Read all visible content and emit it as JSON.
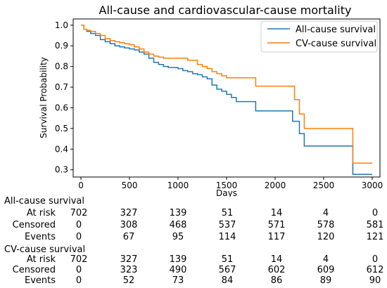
{
  "chart_data": {
    "type": "line",
    "title": "All-cause and cardiovascular-cause mortality",
    "xlabel": "Days",
    "ylabel": "Survival Probability",
    "xlim": [
      -80,
      3080
    ],
    "ylim": [
      0.265,
      1.03
    ],
    "xticks": [
      0,
      500,
      1000,
      1500,
      2000,
      2500,
      3000
    ],
    "yticks": [
      0.3,
      0.4,
      0.5,
      0.6,
      0.7,
      0.8,
      0.9,
      1.0
    ],
    "grid": false,
    "legend_position": "top-right",
    "series": [
      {
        "name": "All-cause survival",
        "color": "#1f77b4",
        "x": [
          0,
          30,
          60,
          100,
          150,
          200,
          250,
          300,
          350,
          400,
          450,
          500,
          550,
          600,
          650,
          700,
          750,
          800,
          850,
          900,
          950,
          1000,
          1050,
          1100,
          1150,
          1200,
          1250,
          1300,
          1350,
          1400,
          1450,
          1500,
          1550,
          1600,
          1700,
          1800,
          1900,
          2000,
          2100,
          2180,
          2250,
          2300,
          2400,
          2500,
          2600,
          2780,
          2800,
          3000
        ],
        "y": [
          1.0,
          0.98,
          0.97,
          0.96,
          0.95,
          0.93,
          0.92,
          0.91,
          0.9,
          0.895,
          0.89,
          0.885,
          0.88,
          0.87,
          0.86,
          0.84,
          0.82,
          0.81,
          0.8,
          0.795,
          0.795,
          0.79,
          0.78,
          0.775,
          0.765,
          0.76,
          0.75,
          0.74,
          0.71,
          0.69,
          0.68,
          0.665,
          0.65,
          0.63,
          0.63,
          0.585,
          0.585,
          0.585,
          0.585,
          0.535,
          0.475,
          0.415,
          0.415,
          0.415,
          0.415,
          0.415,
          0.278,
          0.278
        ]
      },
      {
        "name": "CV-cause survival",
        "color": "#ff7f0e",
        "x": [
          0,
          30,
          60,
          100,
          150,
          200,
          250,
          300,
          350,
          400,
          450,
          500,
          550,
          600,
          650,
          700,
          750,
          800,
          850,
          900,
          1000,
          1100,
          1200,
          1250,
          1300,
          1350,
          1400,
          1450,
          1500,
          1600,
          1800,
          1900,
          2000,
          2100,
          2200,
          2250,
          2300,
          2400,
          2600,
          2780,
          2800,
          3000
        ],
        "y": [
          1.0,
          0.98,
          0.975,
          0.97,
          0.96,
          0.95,
          0.935,
          0.925,
          0.92,
          0.915,
          0.91,
          0.905,
          0.895,
          0.885,
          0.87,
          0.86,
          0.85,
          0.845,
          0.84,
          0.84,
          0.84,
          0.83,
          0.81,
          0.8,
          0.79,
          0.775,
          0.765,
          0.755,
          0.745,
          0.745,
          0.705,
          0.705,
          0.705,
          0.705,
          0.64,
          0.57,
          0.5,
          0.5,
          0.5,
          0.5,
          0.332,
          0.332
        ]
      }
    ]
  },
  "risk_table": {
    "columns": [
      "0",
      "500",
      "1000",
      "1500",
      "2000",
      "2500",
      "3000"
    ],
    "sections": [
      {
        "title": "All-cause survival",
        "rows": [
          {
            "label": "At risk",
            "values": [
              "702",
              "327",
              "139",
              "51",
              "14",
              "4",
              "0"
            ]
          },
          {
            "label": "Censored",
            "values": [
              "0",
              "308",
              "468",
              "537",
              "571",
              "578",
              "581"
            ]
          },
          {
            "label": "Events",
            "values": [
              "0",
              "67",
              "95",
              "114",
              "117",
              "120",
              "121"
            ]
          }
        ]
      },
      {
        "title": "CV-cause survival",
        "rows": [
          {
            "label": "At risk",
            "values": [
              "702",
              "327",
              "139",
              "51",
              "14",
              "4",
              "0"
            ]
          },
          {
            "label": "Censored",
            "values": [
              "0",
              "323",
              "490",
              "567",
              "602",
              "609",
              "612"
            ]
          },
          {
            "label": "Events",
            "values": [
              "0",
              "52",
              "73",
              "84",
              "86",
              "89",
              "90"
            ]
          }
        ]
      }
    ]
  }
}
